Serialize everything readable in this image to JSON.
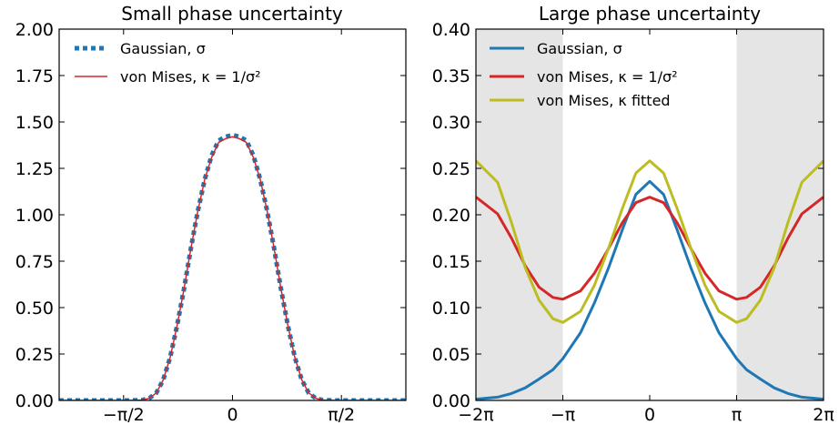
{
  "figure": {
    "background": "#ffffff"
  },
  "chart_data": [
    {
      "type": "line",
      "title": "Small phase uncertainty",
      "xlabel": "",
      "ylabel": "",
      "xlim": [
        -2.5,
        2.5
      ],
      "ylim": [
        0,
        2
      ],
      "grid": false,
      "legend_position": "top-left",
      "x_ticks": [
        {
          "value": -1.5708,
          "label": "−π/2"
        },
        {
          "value": 0,
          "label": "0"
        },
        {
          "value": 1.5708,
          "label": "π/2"
        }
      ],
      "y_ticks": [
        {
          "value": 0,
          "label": "0.00"
        },
        {
          "value": 0.25,
          "label": "0.25"
        },
        {
          "value": 0.5,
          "label": "0.50"
        },
        {
          "value": 0.75,
          "label": "0.75"
        },
        {
          "value": 1.0,
          "label": "1.00"
        },
        {
          "value": 1.25,
          "label": "1.25"
        },
        {
          "value": 1.5,
          "label": "1.50"
        },
        {
          "value": 1.75,
          "label": "1.75"
        },
        {
          "value": 2.0,
          "label": "2.00"
        }
      ],
      "series": [
        {
          "name": "Gaussian, σ",
          "color": "#1f77b4",
          "style": "dotted",
          "x": [
            -2.5,
            -2.3,
            -2.1,
            -1.9,
            -1.7,
            -1.5,
            -1.3,
            -1.2,
            -1.1,
            -1.0,
            -0.9,
            -0.8,
            -0.7,
            -0.6,
            -0.5,
            -0.4,
            -0.3,
            -0.2,
            -0.1,
            0,
            0.1,
            0.2,
            0.3,
            0.4,
            0.5,
            0.6,
            0.7,
            0.8,
            0.9,
            1.0,
            1.1,
            1.2,
            1.3,
            1.5,
            1.7,
            1.9,
            2.1,
            2.3,
            2.5
          ],
          "y": [
            0,
            0,
            0,
            0,
            0,
            0,
            0.002,
            0.012,
            0.04,
            0.11,
            0.23,
            0.4,
            0.6,
            0.82,
            1.02,
            1.19,
            1.32,
            1.4,
            1.42,
            1.43,
            1.42,
            1.4,
            1.32,
            1.19,
            1.02,
            0.82,
            0.6,
            0.4,
            0.23,
            0.11,
            0.04,
            0.012,
            0.002,
            0,
            0,
            0,
            0,
            0,
            0
          ]
        },
        {
          "name": "von Mises, κ = 1/σ²",
          "color": "#d62728",
          "style": "solid",
          "x": [
            -2.5,
            -2.3,
            -2.1,
            -1.9,
            -1.7,
            -1.5,
            -1.3,
            -1.2,
            -1.1,
            -1.0,
            -0.9,
            -0.8,
            -0.7,
            -0.6,
            -0.5,
            -0.4,
            -0.3,
            -0.2,
            -0.1,
            0,
            0.1,
            0.2,
            0.3,
            0.4,
            0.5,
            0.6,
            0.7,
            0.8,
            0.9,
            1.0,
            1.1,
            1.2,
            1.3,
            1.5,
            1.7,
            1.9,
            2.1,
            2.3,
            2.5
          ],
          "y": [
            0,
            0,
            0,
            0,
            0,
            0,
            0.002,
            0.012,
            0.04,
            0.11,
            0.23,
            0.4,
            0.6,
            0.82,
            1.02,
            1.19,
            1.31,
            1.39,
            1.41,
            1.42,
            1.41,
            1.39,
            1.31,
            1.19,
            1.02,
            0.82,
            0.6,
            0.4,
            0.23,
            0.11,
            0.04,
            0.012,
            0.002,
            0,
            0,
            0,
            0,
            0,
            0
          ]
        }
      ]
    },
    {
      "type": "line",
      "title": "Large phase uncertainty",
      "xlabel": "",
      "ylabel": "",
      "xlim": [
        -6.2832,
        6.2832
      ],
      "ylim": [
        0,
        0.4
      ],
      "grid": false,
      "legend_position": "top-left",
      "shaded_x_ranges": [
        [
          -6.2832,
          -3.1416
        ],
        [
          3.1416,
          6.2832
        ]
      ],
      "shade_color": "#e5e5e5",
      "x_ticks": [
        {
          "value": -6.2832,
          "label": "−2π"
        },
        {
          "value": -3.1416,
          "label": "−π"
        },
        {
          "value": 0,
          "label": "0"
        },
        {
          "value": 3.1416,
          "label": "π"
        },
        {
          "value": 6.2832,
          "label": "2π"
        }
      ],
      "y_ticks": [
        {
          "value": 0,
          "label": "0.00"
        },
        {
          "value": 0.05,
          "label": "0.05"
        },
        {
          "value": 0.1,
          "label": "0.10"
        },
        {
          "value": 0.15,
          "label": "0.15"
        },
        {
          "value": 0.2,
          "label": "0.20"
        },
        {
          "value": 0.25,
          "label": "0.25"
        },
        {
          "value": 0.3,
          "label": "0.30"
        },
        {
          "value": 0.35,
          "label": "0.35"
        },
        {
          "value": 0.4,
          "label": "0.40"
        }
      ],
      "series": [
        {
          "name": "Gaussian, σ",
          "color": "#1f77b4",
          "style": "solid",
          "x": [
            -6.28,
            -5.5,
            -5.0,
            -4.5,
            -4.0,
            -3.5,
            -3.14,
            -2.5,
            -2.0,
            -1.5,
            -1.0,
            -0.5,
            0,
            0.5,
            1.0,
            1.5,
            2.0,
            2.5,
            3.14,
            3.5,
            4.0,
            4.5,
            5.0,
            5.5,
            6.28
          ],
          "y": [
            0.0014,
            0.0035,
            0.0075,
            0.0135,
            0.023,
            0.033,
            0.045,
            0.073,
            0.105,
            0.142,
            0.183,
            0.222,
            0.236,
            0.222,
            0.183,
            0.142,
            0.105,
            0.073,
            0.045,
            0.033,
            0.023,
            0.0135,
            0.0075,
            0.0035,
            0.0014
          ]
        },
        {
          "name": "von Mises, κ = 1/σ²",
          "color": "#d62728",
          "style": "solid",
          "x": [
            -6.28,
            -5.5,
            -5.0,
            -4.5,
            -4.0,
            -3.5,
            -3.14,
            -2.5,
            -2.0,
            -1.5,
            -1.0,
            -0.5,
            0,
            0.5,
            1.0,
            1.5,
            2.0,
            2.5,
            3.14,
            3.5,
            4.0,
            4.5,
            5.0,
            5.5,
            6.28
          ],
          "y": [
            0.219,
            0.201,
            0.175,
            0.145,
            0.122,
            0.111,
            0.109,
            0.118,
            0.137,
            0.163,
            0.191,
            0.213,
            0.219,
            0.213,
            0.191,
            0.163,
            0.137,
            0.118,
            0.109,
            0.111,
            0.122,
            0.145,
            0.175,
            0.201,
            0.219
          ]
        },
        {
          "name": "von Mises, κ fitted",
          "color": "#bcbd22",
          "style": "solid",
          "x": [
            -6.28,
            -5.5,
            -5.0,
            -4.5,
            -4.0,
            -3.5,
            -3.14,
            -2.5,
            -2.0,
            -1.5,
            -1.0,
            -0.5,
            0,
            0.5,
            1.0,
            1.5,
            2.0,
            2.5,
            3.14,
            3.5,
            4.0,
            4.5,
            5.0,
            5.5,
            6.28
          ],
          "y": [
            0.258,
            0.235,
            0.192,
            0.143,
            0.108,
            0.088,
            0.084,
            0.096,
            0.124,
            0.163,
            0.206,
            0.245,
            0.258,
            0.245,
            0.206,
            0.163,
            0.124,
            0.096,
            0.084,
            0.088,
            0.108,
            0.143,
            0.192,
            0.235,
            0.258
          ]
        }
      ]
    }
  ]
}
